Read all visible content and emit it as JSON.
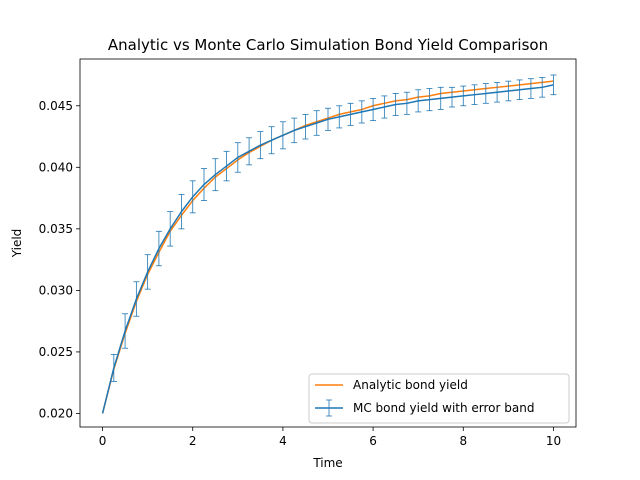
{
  "chart_data": {
    "type": "line",
    "title": "Analytic vs Monte Carlo Simulation  Bond Yield Comparison",
    "xlabel": "Time",
    "ylabel": "Yield",
    "xlim": [
      -0.5,
      10.5
    ],
    "ylim": [
      0.0189,
      0.0488
    ],
    "xticks": [
      0,
      2,
      4,
      6,
      8,
      10
    ],
    "yticks": [
      0.02,
      0.025,
      0.03,
      0.035,
      0.04,
      0.045
    ],
    "ytick_labels": [
      "0.020",
      "0.025",
      "0.030",
      "0.035",
      "0.040",
      "0.045"
    ],
    "grid": false,
    "legend_position": "lower-right",
    "x": [
      0,
      0.25,
      0.5,
      0.75,
      1.0,
      1.25,
      1.5,
      1.75,
      2.0,
      2.25,
      2.5,
      2.75,
      3.0,
      3.25,
      3.5,
      3.75,
      4.0,
      4.25,
      4.5,
      4.75,
      5.0,
      5.25,
      5.5,
      5.75,
      6.0,
      6.25,
      6.5,
      6.75,
      7.0,
      7.25,
      7.5,
      7.75,
      8.0,
      8.25,
      8.5,
      8.75,
      9.0,
      9.25,
      9.5,
      9.75,
      10.0
    ],
    "series": [
      {
        "name": "Analytic bond yield",
        "color": "#ff7f0e",
        "values": [
          0.02,
          0.0236,
          0.0265,
          0.0291,
          0.0313,
          0.0331,
          0.0348,
          0.0361,
          0.0373,
          0.0383,
          0.0392,
          0.0399,
          0.0406,
          0.0412,
          0.0417,
          0.0422,
          0.0426,
          0.043,
          0.0434,
          0.0437,
          0.044,
          0.0443,
          0.0445,
          0.0447,
          0.045,
          0.0452,
          0.0454,
          0.0455,
          0.0457,
          0.0458,
          0.046,
          0.0461,
          0.0462,
          0.0463,
          0.0464,
          0.0465,
          0.0466,
          0.0467,
          0.0468,
          0.0469,
          0.047
        ]
      },
      {
        "name": "MC bond yield with error band",
        "color": "#1f77b4",
        "values": [
          0.02,
          0.0237,
          0.0267,
          0.0293,
          0.0315,
          0.0334,
          0.035,
          0.0364,
          0.0376,
          0.0386,
          0.0394,
          0.0401,
          0.0408,
          0.0413,
          0.0418,
          0.0422,
          0.0426,
          0.043,
          0.0433,
          0.0436,
          0.0439,
          0.0441,
          0.0443,
          0.0445,
          0.0447,
          0.0449,
          0.0451,
          0.0452,
          0.0454,
          0.0455,
          0.0456,
          0.0457,
          0.0458,
          0.0459,
          0.046,
          0.0461,
          0.0462,
          0.0463,
          0.0464,
          0.0465,
          0.0467
        ],
        "error": [
          0.0,
          0.0011,
          0.0014,
          0.0014,
          0.0014,
          0.0014,
          0.0014,
          0.0014,
          0.0013,
          0.0013,
          0.0013,
          0.0012,
          0.0012,
          0.0011,
          0.0011,
          0.0011,
          0.0011,
          0.001,
          0.001,
          0.001,
          0.0009,
          0.0009,
          0.0009,
          0.0009,
          0.0009,
          0.0009,
          0.0009,
          0.0009,
          0.0009,
          0.0009,
          0.0009,
          0.0008,
          0.0008,
          0.0008,
          0.0008,
          0.0008,
          0.0008,
          0.0008,
          0.0008,
          0.0008,
          0.0008
        ]
      }
    ]
  }
}
